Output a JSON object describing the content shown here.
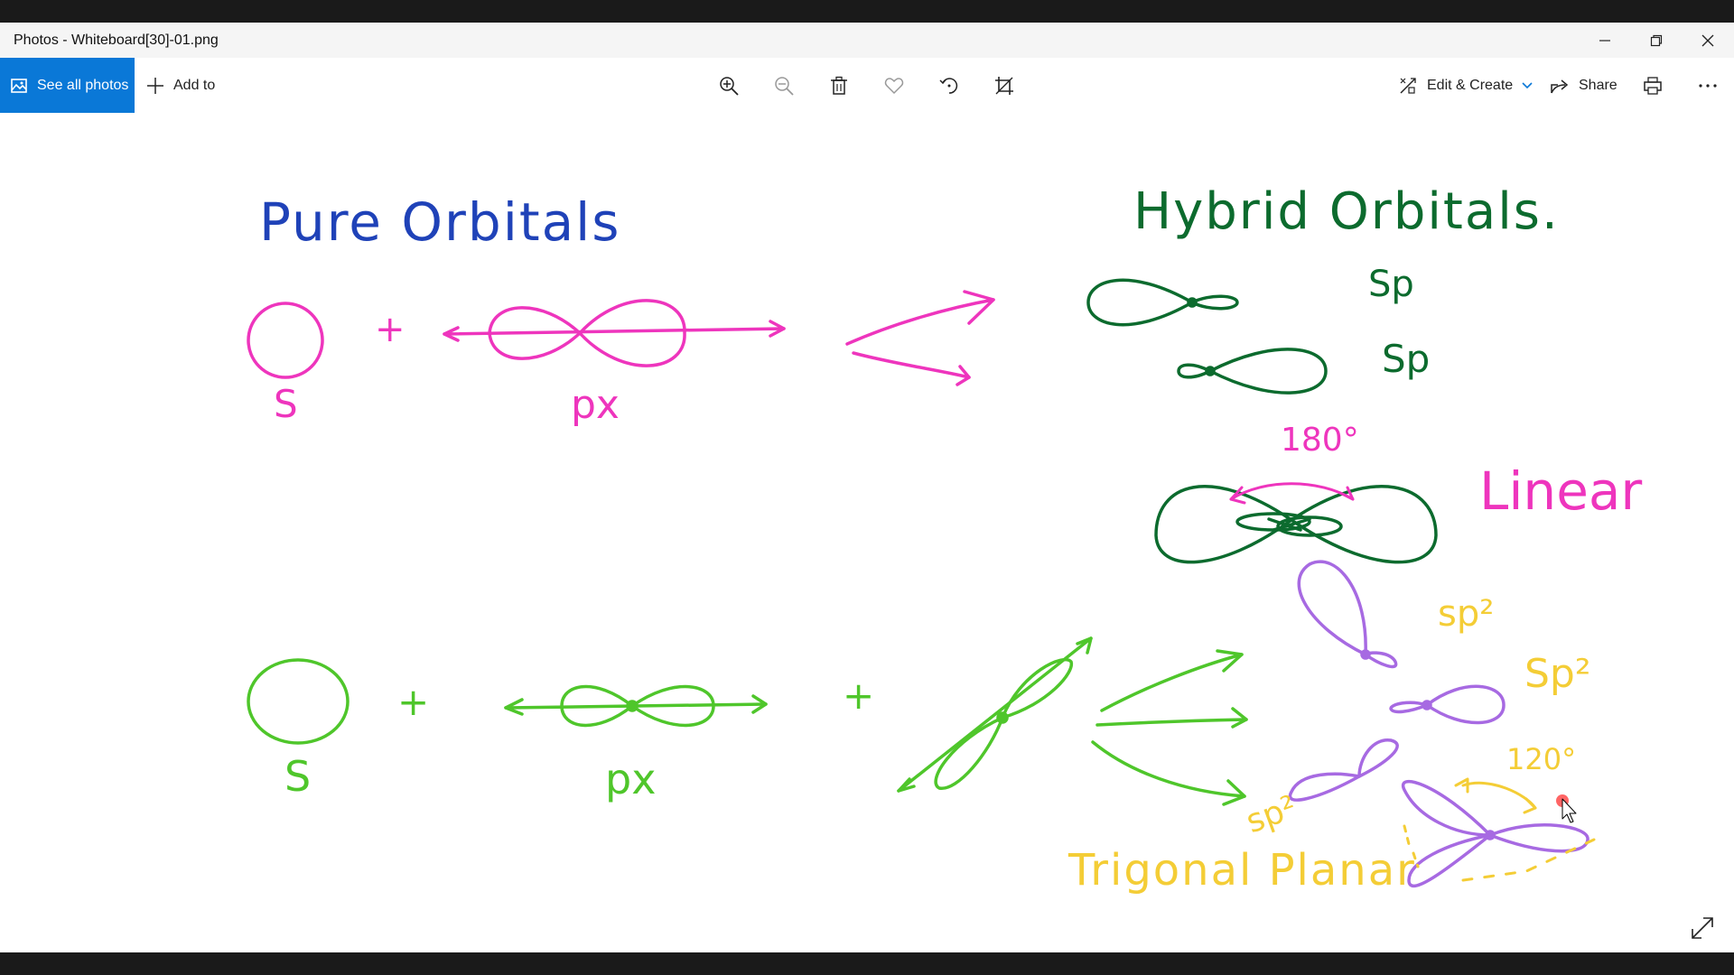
{
  "window": {
    "title": "Photos - Whiteboard[30]-01.png"
  },
  "toolbar": {
    "see_all_photos": "See all photos",
    "add_to": "Add to",
    "edit_create": "Edit & Create",
    "share": "Share"
  },
  "whiteboard": {
    "heading_pure": "Pure Orbitals",
    "heading_hybrid": "Hybrid Orbitals.",
    "top": {
      "s_label": "S",
      "plus": "+",
      "px_label": "px",
      "sp_1": "Sp",
      "sp_2": "Sp",
      "angle": "180°",
      "shape": "Linear"
    },
    "bottom": {
      "s_label": "S",
      "plus_1": "+",
      "px_label": "px",
      "plus_2": "+",
      "sp2_1": "sp²",
      "sp2_2": "Sp²",
      "sp2_3": "sp²",
      "angle": "120°",
      "shape": "Trigonal Planar"
    }
  },
  "colors": {
    "accent": "#0a78d7",
    "pink": "#ee35bd",
    "dark_green": "#0c6b2e",
    "blue": "#1f42b8",
    "light_green": "#4fc62b",
    "purple": "#a76ae2",
    "yellow": "#f4cd36"
  }
}
